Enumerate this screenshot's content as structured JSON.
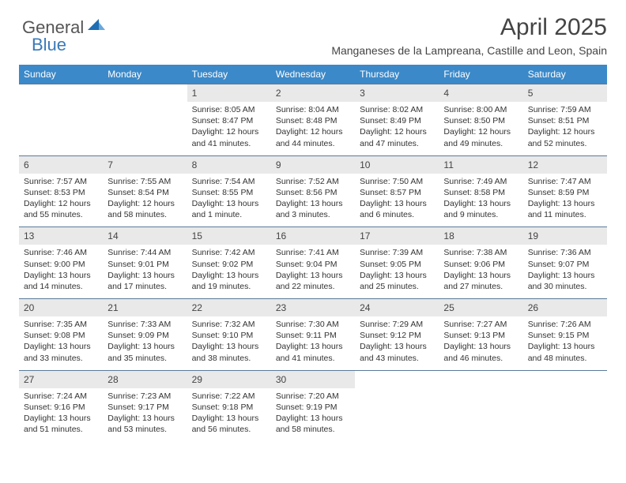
{
  "logo": {
    "part1": "General",
    "part2": "Blue"
  },
  "title": "April 2025",
  "location": "Manganeses de la Lampreana, Castille and Leon, Spain",
  "colors": {
    "header_bg": "#3b89c9",
    "header_text": "#ffffff",
    "daynum_bg": "#e9e9e9",
    "border": "#5a7a9a",
    "logo_accent": "#3a7ab8",
    "logo_gray": "#555555",
    "body_text": "#333333"
  },
  "day_labels": [
    "Sunday",
    "Monday",
    "Tuesday",
    "Wednesday",
    "Thursday",
    "Friday",
    "Saturday"
  ],
  "weeks": [
    {
      "nums": [
        "",
        "",
        "1",
        "2",
        "3",
        "4",
        "5"
      ],
      "cells": [
        null,
        null,
        {
          "sunrise": "Sunrise: 8:05 AM",
          "sunset": "Sunset: 8:47 PM",
          "daylight": "Daylight: 12 hours and 41 minutes."
        },
        {
          "sunrise": "Sunrise: 8:04 AM",
          "sunset": "Sunset: 8:48 PM",
          "daylight": "Daylight: 12 hours and 44 minutes."
        },
        {
          "sunrise": "Sunrise: 8:02 AM",
          "sunset": "Sunset: 8:49 PM",
          "daylight": "Daylight: 12 hours and 47 minutes."
        },
        {
          "sunrise": "Sunrise: 8:00 AM",
          "sunset": "Sunset: 8:50 PM",
          "daylight": "Daylight: 12 hours and 49 minutes."
        },
        {
          "sunrise": "Sunrise: 7:59 AM",
          "sunset": "Sunset: 8:51 PM",
          "daylight": "Daylight: 12 hours and 52 minutes."
        }
      ]
    },
    {
      "nums": [
        "6",
        "7",
        "8",
        "9",
        "10",
        "11",
        "12"
      ],
      "cells": [
        {
          "sunrise": "Sunrise: 7:57 AM",
          "sunset": "Sunset: 8:53 PM",
          "daylight": "Daylight: 12 hours and 55 minutes."
        },
        {
          "sunrise": "Sunrise: 7:55 AM",
          "sunset": "Sunset: 8:54 PM",
          "daylight": "Daylight: 12 hours and 58 minutes."
        },
        {
          "sunrise": "Sunrise: 7:54 AM",
          "sunset": "Sunset: 8:55 PM",
          "daylight": "Daylight: 13 hours and 1 minute."
        },
        {
          "sunrise": "Sunrise: 7:52 AM",
          "sunset": "Sunset: 8:56 PM",
          "daylight": "Daylight: 13 hours and 3 minutes."
        },
        {
          "sunrise": "Sunrise: 7:50 AM",
          "sunset": "Sunset: 8:57 PM",
          "daylight": "Daylight: 13 hours and 6 minutes."
        },
        {
          "sunrise": "Sunrise: 7:49 AM",
          "sunset": "Sunset: 8:58 PM",
          "daylight": "Daylight: 13 hours and 9 minutes."
        },
        {
          "sunrise": "Sunrise: 7:47 AM",
          "sunset": "Sunset: 8:59 PM",
          "daylight": "Daylight: 13 hours and 11 minutes."
        }
      ]
    },
    {
      "nums": [
        "13",
        "14",
        "15",
        "16",
        "17",
        "18",
        "19"
      ],
      "cells": [
        {
          "sunrise": "Sunrise: 7:46 AM",
          "sunset": "Sunset: 9:00 PM",
          "daylight": "Daylight: 13 hours and 14 minutes."
        },
        {
          "sunrise": "Sunrise: 7:44 AM",
          "sunset": "Sunset: 9:01 PM",
          "daylight": "Daylight: 13 hours and 17 minutes."
        },
        {
          "sunrise": "Sunrise: 7:42 AM",
          "sunset": "Sunset: 9:02 PM",
          "daylight": "Daylight: 13 hours and 19 minutes."
        },
        {
          "sunrise": "Sunrise: 7:41 AM",
          "sunset": "Sunset: 9:04 PM",
          "daylight": "Daylight: 13 hours and 22 minutes."
        },
        {
          "sunrise": "Sunrise: 7:39 AM",
          "sunset": "Sunset: 9:05 PM",
          "daylight": "Daylight: 13 hours and 25 minutes."
        },
        {
          "sunrise": "Sunrise: 7:38 AM",
          "sunset": "Sunset: 9:06 PM",
          "daylight": "Daylight: 13 hours and 27 minutes."
        },
        {
          "sunrise": "Sunrise: 7:36 AM",
          "sunset": "Sunset: 9:07 PM",
          "daylight": "Daylight: 13 hours and 30 minutes."
        }
      ]
    },
    {
      "nums": [
        "20",
        "21",
        "22",
        "23",
        "24",
        "25",
        "26"
      ],
      "cells": [
        {
          "sunrise": "Sunrise: 7:35 AM",
          "sunset": "Sunset: 9:08 PM",
          "daylight": "Daylight: 13 hours and 33 minutes."
        },
        {
          "sunrise": "Sunrise: 7:33 AM",
          "sunset": "Sunset: 9:09 PM",
          "daylight": "Daylight: 13 hours and 35 minutes."
        },
        {
          "sunrise": "Sunrise: 7:32 AM",
          "sunset": "Sunset: 9:10 PM",
          "daylight": "Daylight: 13 hours and 38 minutes."
        },
        {
          "sunrise": "Sunrise: 7:30 AM",
          "sunset": "Sunset: 9:11 PM",
          "daylight": "Daylight: 13 hours and 41 minutes."
        },
        {
          "sunrise": "Sunrise: 7:29 AM",
          "sunset": "Sunset: 9:12 PM",
          "daylight": "Daylight: 13 hours and 43 minutes."
        },
        {
          "sunrise": "Sunrise: 7:27 AM",
          "sunset": "Sunset: 9:13 PM",
          "daylight": "Daylight: 13 hours and 46 minutes."
        },
        {
          "sunrise": "Sunrise: 7:26 AM",
          "sunset": "Sunset: 9:15 PM",
          "daylight": "Daylight: 13 hours and 48 minutes."
        }
      ]
    },
    {
      "nums": [
        "27",
        "28",
        "29",
        "30",
        "",
        "",
        ""
      ],
      "cells": [
        {
          "sunrise": "Sunrise: 7:24 AM",
          "sunset": "Sunset: 9:16 PM",
          "daylight": "Daylight: 13 hours and 51 minutes."
        },
        {
          "sunrise": "Sunrise: 7:23 AM",
          "sunset": "Sunset: 9:17 PM",
          "daylight": "Daylight: 13 hours and 53 minutes."
        },
        {
          "sunrise": "Sunrise: 7:22 AM",
          "sunset": "Sunset: 9:18 PM",
          "daylight": "Daylight: 13 hours and 56 minutes."
        },
        {
          "sunrise": "Sunrise: 7:20 AM",
          "sunset": "Sunset: 9:19 PM",
          "daylight": "Daylight: 13 hours and 58 minutes."
        },
        null,
        null,
        null
      ]
    }
  ]
}
